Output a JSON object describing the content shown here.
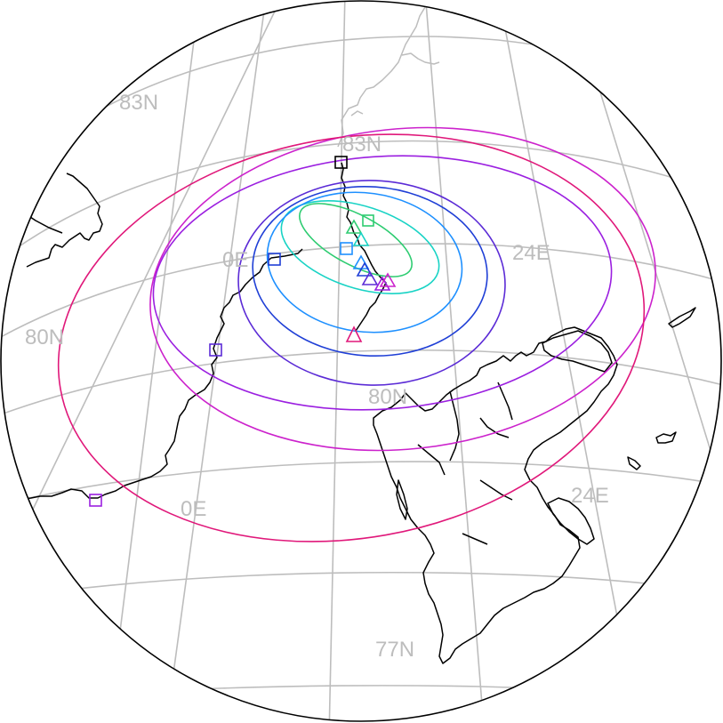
{
  "map": {
    "projection": "orthographic",
    "grid_labels": {
      "lat_83n_a": "83N",
      "lat_83n_b": "83N",
      "lat_80n_a": "80N",
      "lat_80n_b": "80N",
      "lat_77n": "77N",
      "lon_0e_a": "0E",
      "lon_0e_b": "0E",
      "lon_24e_a": "24E",
      "lon_24e_b": "24E"
    },
    "colors": {
      "grid": "#bdbdbd",
      "coastline": "#000000",
      "border": "#000000",
      "track": "#000000",
      "ellipse_1": "#2ecc71",
      "ellipse_2": "#19d3c5",
      "ellipse_3": "#1e90ff",
      "ellipse_4": "#1f3fd6",
      "ellipse_5": "#5b2bd6",
      "ellipse_6": "#9b1fe0",
      "ellipse_7": "#cc22cc",
      "ellipse_8": "#e0187a"
    },
    "markers": {
      "square_colors": [
        "#000000",
        "#2ecc71",
        "#1e90ff",
        "#1f3fd6",
        "#5b2bd6",
        "#9b1fe0"
      ],
      "triangle_colors": [
        "#2ecc71",
        "#19d3c5",
        "#1e90ff",
        "#1f3fd6",
        "#5b2bd6",
        "#9b1fe0",
        "#cc22cc",
        "#e0187a"
      ]
    }
  }
}
